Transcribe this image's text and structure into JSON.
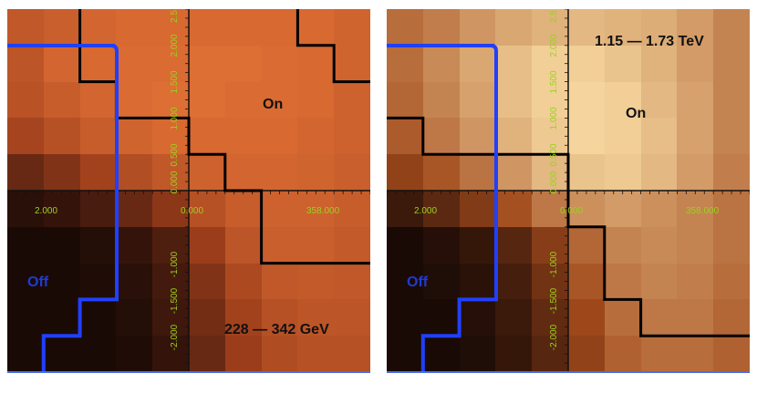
{
  "panels": [
    {
      "id": "low-energy",
      "energy_range": "228 — 342 GeV",
      "on_label": "On",
      "off_label": "Off",
      "x_tick_labels": [
        "2.000",
        "0.000",
        "358.000"
      ],
      "y_tick_labels_upper": [
        "2.5",
        "2.000",
        "1.500",
        "1.000",
        "0.500",
        "0.000"
      ],
      "y_tick_labels_lower": [
        "-1.000",
        "-1.500",
        "-2.000"
      ],
      "colors": {
        "heat_low": "#1a0a06",
        "heat_mid": "#9b3d1b",
        "heat_high": "#ee7a3a",
        "on_contour": "#000000",
        "off_contour": "#2040ff",
        "axis_text": "#9bd11f"
      },
      "heatmap": [
        [
          0.72,
          0.78,
          0.84,
          0.86,
          0.86,
          0.86,
          0.86,
          0.86,
          0.86,
          0.82
        ],
        [
          0.7,
          0.84,
          0.86,
          0.88,
          0.88,
          0.9,
          0.9,
          0.88,
          0.86,
          0.82
        ],
        [
          0.68,
          0.76,
          0.84,
          0.88,
          0.9,
          0.9,
          0.88,
          0.88,
          0.86,
          0.8
        ],
        [
          0.56,
          0.66,
          0.76,
          0.82,
          0.86,
          0.86,
          0.86,
          0.86,
          0.84,
          0.8
        ],
        [
          0.3,
          0.4,
          0.54,
          0.64,
          0.72,
          0.8,
          0.84,
          0.84,
          0.82,
          0.78
        ],
        [
          0.06,
          0.1,
          0.18,
          0.3,
          0.44,
          0.66,
          0.76,
          0.8,
          0.8,
          0.76
        ],
        [
          0.0,
          0.0,
          0.04,
          0.1,
          0.2,
          0.5,
          0.7,
          0.78,
          0.78,
          0.74
        ],
        [
          0.0,
          0.0,
          0.02,
          0.06,
          0.16,
          0.4,
          0.6,
          0.72,
          0.74,
          0.72
        ],
        [
          0.0,
          0.0,
          0.0,
          0.04,
          0.14,
          0.34,
          0.54,
          0.66,
          0.7,
          0.7
        ],
        [
          0.0,
          0.0,
          0.0,
          0.02,
          0.1,
          0.3,
          0.5,
          0.62,
          0.66,
          0.66
        ]
      ],
      "on_contour": [
        [
          2,
          0
        ],
        [
          2,
          2
        ],
        [
          3,
          2
        ],
        [
          3,
          3
        ],
        [
          5,
          3
        ],
        [
          5,
          4
        ],
        [
          6,
          4
        ],
        [
          6,
          5
        ],
        [
          7,
          5
        ],
        [
          7,
          7
        ],
        [
          10,
          7
        ]
      ],
      "on_contour_top": [
        [
          8,
          0
        ],
        [
          8,
          1
        ],
        [
          9,
          1
        ],
        [
          9,
          2
        ],
        [
          10,
          2
        ]
      ],
      "off_contour": [
        [
          1,
          10
        ],
        [
          1,
          9
        ],
        [
          2,
          9
        ],
        [
          2,
          8
        ],
        [
          3,
          8
        ],
        [
          3,
          6
        ]
      ]
    },
    {
      "id": "high-energy",
      "energy_range": "1.15 — 1.73 TeV",
      "on_label": "On",
      "off_label": "Off",
      "x_tick_labels": [
        "2.000",
        "0.000",
        "358.000"
      ],
      "y_tick_labels_upper": [
        "2.5",
        "2.000",
        "1.500",
        "1.000",
        "0.500",
        "0.000"
      ],
      "y_tick_labels_lower": [
        "-1.000",
        "-1.500",
        "-2.000"
      ],
      "colors": {
        "heat_low": "#1a0a06",
        "heat_mid": "#a24a1c",
        "heat_high": "#f8dba2",
        "on_contour": "#000000",
        "off_contour": "#2040ff",
        "axis_text": "#9bd11f"
      },
      "heatmap": [
        [
          0.62,
          0.68,
          0.76,
          0.82,
          0.86,
          0.88,
          0.86,
          0.84,
          0.78,
          0.7
        ],
        [
          0.62,
          0.72,
          0.82,
          0.9,
          0.96,
          0.96,
          0.92,
          0.86,
          0.78,
          0.7
        ],
        [
          0.6,
          0.7,
          0.8,
          0.9,
          0.96,
          0.98,
          0.96,
          0.88,
          0.8,
          0.7
        ],
        [
          0.56,
          0.66,
          0.76,
          0.86,
          0.94,
          0.98,
          0.96,
          0.9,
          0.8,
          0.7
        ],
        [
          0.44,
          0.54,
          0.64,
          0.76,
          0.88,
          0.92,
          0.94,
          0.88,
          0.78,
          0.68
        ],
        [
          0.12,
          0.24,
          0.38,
          0.52,
          0.66,
          0.74,
          0.78,
          0.74,
          0.7,
          0.64
        ],
        [
          0.0,
          0.04,
          0.1,
          0.22,
          0.4,
          0.6,
          0.7,
          0.72,
          0.7,
          0.64
        ],
        [
          0.0,
          0.02,
          0.06,
          0.16,
          0.32,
          0.54,
          0.66,
          0.7,
          0.68,
          0.62
        ],
        [
          0.0,
          0.0,
          0.04,
          0.12,
          0.26,
          0.48,
          0.62,
          0.66,
          0.66,
          0.6
        ],
        [
          0.0,
          0.0,
          0.02,
          0.1,
          0.22,
          0.44,
          0.58,
          0.62,
          0.62,
          0.58
        ]
      ],
      "on_contour": [
        [
          0,
          3
        ],
        [
          1,
          3
        ],
        [
          1,
          4
        ],
        [
          5,
          4
        ],
        [
          5,
          6
        ],
        [
          6,
          6
        ],
        [
          6,
          8
        ],
        [
          7,
          8
        ],
        [
          7,
          9
        ],
        [
          10,
          9
        ]
      ],
      "on_contour_top": [],
      "off_contour": [
        [
          1,
          10
        ],
        [
          1,
          9
        ],
        [
          2,
          9
        ],
        [
          2,
          8
        ],
        [
          3,
          8
        ],
        [
          3,
          6
        ]
      ]
    }
  ]
}
